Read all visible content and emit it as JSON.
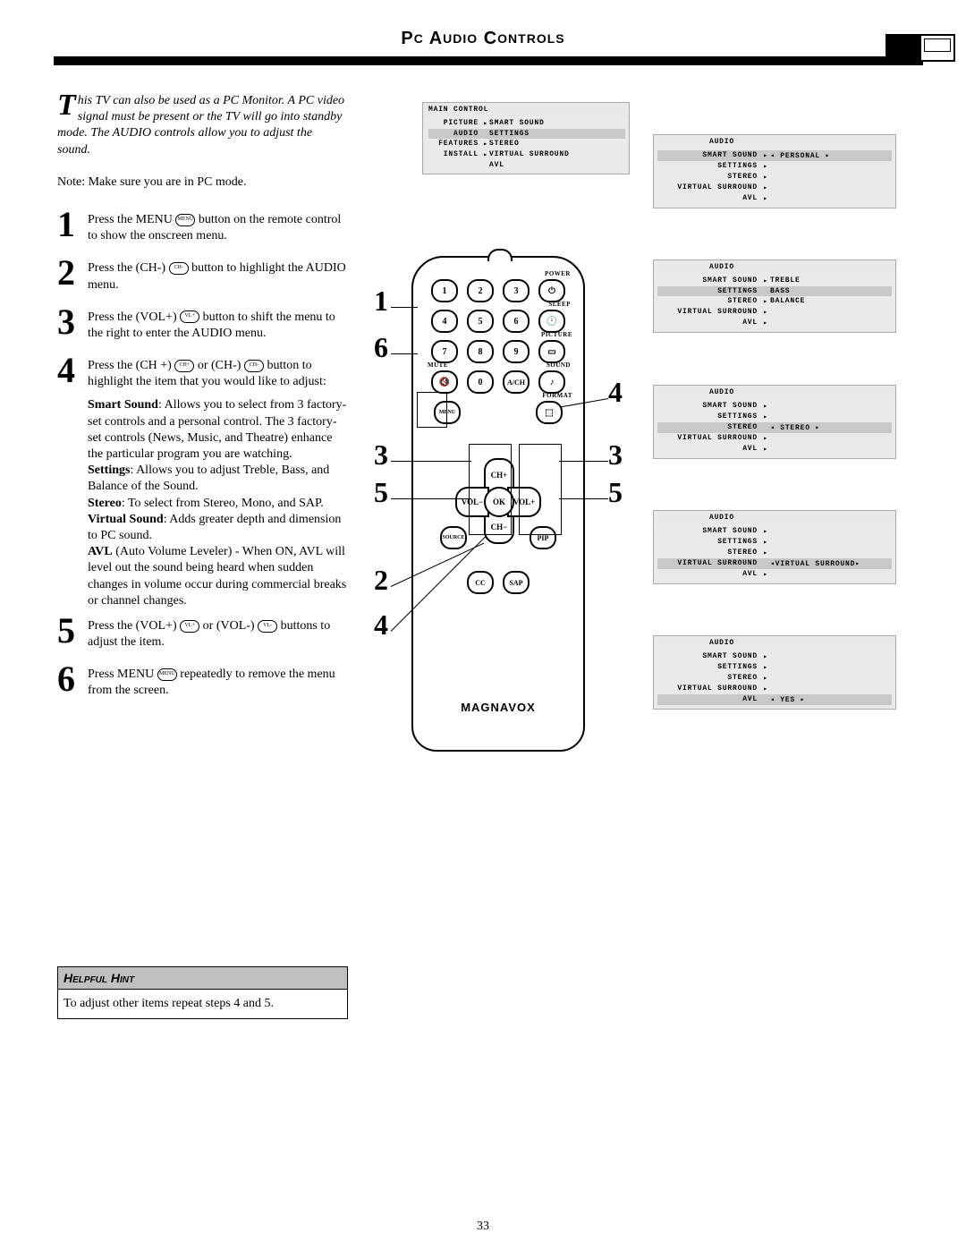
{
  "header": {
    "title_main": "P",
    "title_rest": "C",
    "title2": " A",
    "title3": "UDIO",
    "title4": " C",
    "title5": "ONTROLS",
    "full": "PC AUDIO CONTROLS"
  },
  "intro": {
    "drop": "T",
    "text": "his TV can also be used as a PC Monitor. A PC video signal must be present or the TV will go into standby mode. The AUDIO controls allow you to adjust the sound."
  },
  "note": "Note: Make sure you are in PC mode.",
  "steps": [
    {
      "n": "1",
      "text": "Press the MENU",
      "tail": " button on the remote control to show the onscreen menu."
    },
    {
      "n": "2",
      "text": "Press the (CH-)",
      "tail": " button to highlight the AUDIO menu."
    },
    {
      "n": "3",
      "text": "Press the (VOL+)",
      "tail": " button to shift the menu to the right to enter the AUDIO menu."
    },
    {
      "n": "4",
      "text": "Press the (CH +)",
      "mid": " or (CH-) ",
      "tail": "button to highlight the item that you would like to adjust:"
    },
    {
      "n": "5",
      "text": "Press the (VOL+)",
      "mid": " or (VOL-) ",
      "tail": "buttons to adjust the item."
    },
    {
      "n": "6",
      "text": "Press MENU",
      "tail": " repeatedly to remove the menu from the screen."
    }
  ],
  "subs": [
    {
      "b": "Smart Sound",
      "t": ": Allows you to select from 3 factory-set controls and a personal control. The 3 factory-set controls (News, Music, and Theatre) enhance the particular program you are watching."
    },
    {
      "b": "Settings",
      "t": ": Allows you to adjust Treble, Bass, and Balance of the Sound."
    },
    {
      "b": "Stereo",
      "t": ": To select from Stereo, Mono, and SAP."
    },
    {
      "b": "Virtual Sound",
      "t": ": Adds greater depth and dimension to PC sound."
    },
    {
      "b": "AVL",
      "t": " (Auto Volume Leveler) - When ON, AVL will level out the sound being heard when sudden changes in volume occur during commercial breaks or channel changes."
    }
  ],
  "hint": {
    "title_a": "H",
    "title_b": "ELPFUL",
    "title_c": " H",
    "title_d": "INT",
    "body": "To adjust other items repeat steps 4 and 5."
  },
  "topmenu": {
    "title": "MAIN CONTROL",
    "rows": [
      {
        "l": "PICTURE",
        "d": "▸",
        "r": "SMART SOUND"
      },
      {
        "l": "AUDIO",
        "d": " ",
        "r": "SETTINGS",
        "hl": true
      },
      {
        "l": "FEATURES",
        "d": "▸",
        "r": "STEREO"
      },
      {
        "l": "INSTALL",
        "d": "▸",
        "r": "VIRTUAL SURROUND"
      },
      {
        "l": "",
        "d": " ",
        "r": "AVL"
      }
    ]
  },
  "panels": [
    {
      "title": "AUDIO",
      "hl": 0,
      "rows": [
        {
          "l": "SMART SOUND",
          "d": "▸",
          "r": "◂   PERSONAL   ▸",
          "hl": true
        },
        {
          "l": "SETTINGS",
          "d": "▸",
          "r": ""
        },
        {
          "l": "STEREO",
          "d": "▸",
          "r": ""
        },
        {
          "l": "VIRTUAL SURROUND",
          "d": "▸",
          "r": ""
        },
        {
          "l": "AVL",
          "d": "▸",
          "r": ""
        }
      ]
    },
    {
      "title": "AUDIO",
      "hl": 1,
      "rows": [
        {
          "l": "SMART SOUND",
          "d": "▸",
          "r": "TREBLE"
        },
        {
          "l": "SETTINGS",
          "d": " ",
          "r": "BASS",
          "hl": true
        },
        {
          "l": "STEREO",
          "d": "▸",
          "r": "BALANCE"
        },
        {
          "l": "VIRTUAL SURROUND",
          "d": "▸",
          "r": ""
        },
        {
          "l": "AVL",
          "d": "▸",
          "r": ""
        }
      ]
    },
    {
      "title": "AUDIO",
      "hl": 2,
      "rows": [
        {
          "l": "SMART SOUND",
          "d": "▸",
          "r": ""
        },
        {
          "l": "SETTINGS",
          "d": "▸",
          "r": ""
        },
        {
          "l": "STEREO",
          "d": " ",
          "r": "◂   STEREO   ▸",
          "hl": true
        },
        {
          "l": "VIRTUAL SURROUND",
          "d": "▸",
          "r": ""
        },
        {
          "l": "AVL",
          "d": "▸",
          "r": ""
        }
      ]
    },
    {
      "title": "AUDIO",
      "hl": 3,
      "rows": [
        {
          "l": "SMART SOUND",
          "d": "▸",
          "r": ""
        },
        {
          "l": "SETTINGS",
          "d": "▸",
          "r": ""
        },
        {
          "l": "STEREO",
          "d": "▸",
          "r": ""
        },
        {
          "l": "VIRTUAL SURROUND",
          "d": " ",
          "r": "◂VIRTUAL SURROUND▸",
          "hl": true
        },
        {
          "l": "AVL",
          "d": "▸",
          "r": ""
        }
      ]
    },
    {
      "title": "AUDIO",
      "hl": 4,
      "rows": [
        {
          "l": "SMART SOUND",
          "d": "▸",
          "r": ""
        },
        {
          "l": "SETTINGS",
          "d": "▸",
          "r": ""
        },
        {
          "l": "STEREO",
          "d": "▸",
          "r": ""
        },
        {
          "l": "VIRTUAL SURROUND",
          "d": "▸",
          "r": ""
        },
        {
          "l": "AVL",
          "d": " ",
          "r": "◂     YES     ▸",
          "hl": true
        }
      ]
    }
  ],
  "remote": {
    "labels": {
      "power": "POWER",
      "sleep": "SLEEP",
      "picture": "PICTURE",
      "mute": "MUTE",
      "sound": "SOUND",
      "format": "FORMAT"
    },
    "nums": [
      "1",
      "2",
      "3",
      "4",
      "5",
      "6",
      "7",
      "8",
      "9",
      "0"
    ],
    "cross": {
      "up": "CH+",
      "down": "CH−",
      "left": "VOL−",
      "right": "VOL+",
      "ok": "OK"
    },
    "other": {
      "menu": "MENU",
      "source": "SOURCE",
      "pip": "PIP",
      "cc": "CC",
      "sap": "SAP",
      "ach": "A/CH"
    },
    "brand": "MAGNAVOX"
  },
  "callouts": {
    "left": [
      "1",
      "6",
      "3",
      "5",
      "2",
      "4"
    ],
    "right": [
      "4",
      "3",
      "5"
    ]
  },
  "page_number": "33"
}
